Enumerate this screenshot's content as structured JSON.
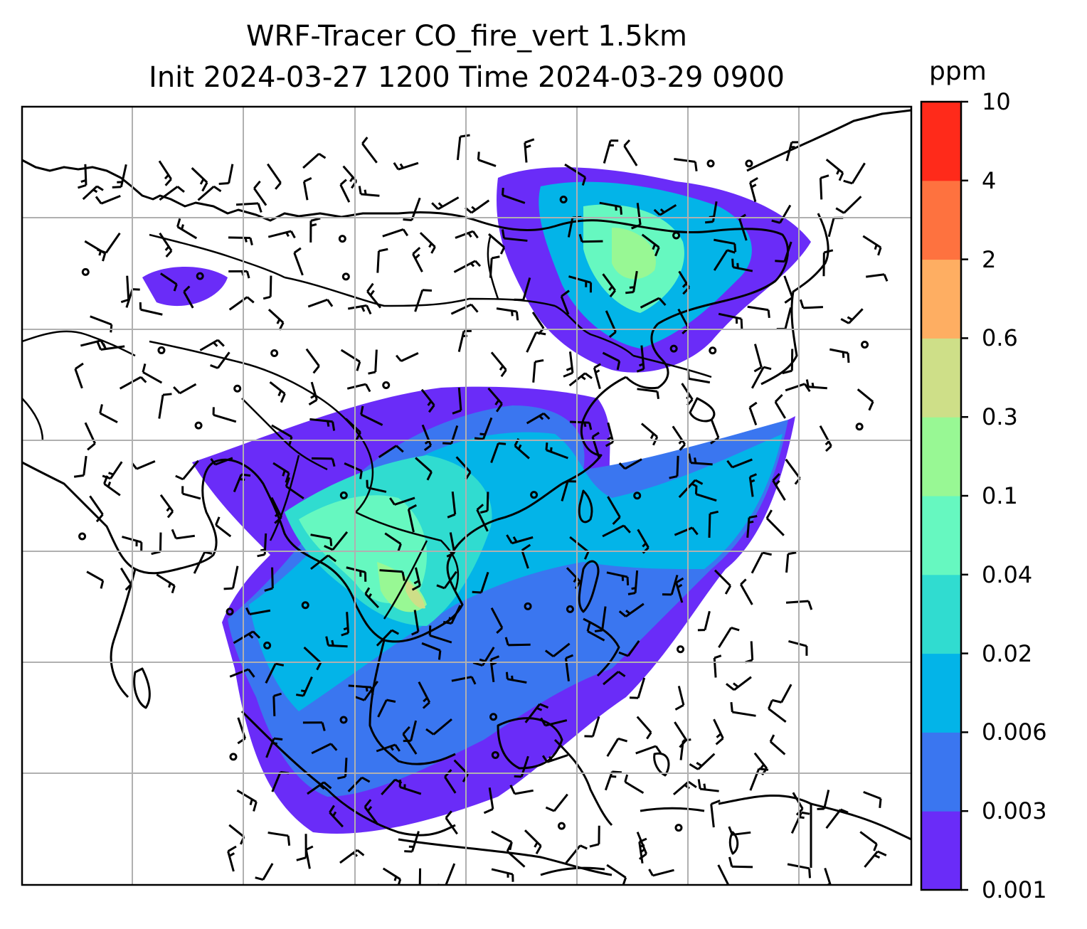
{
  "title": {
    "line1": "WRF-Tracer CO_fire_vert 1.5km",
    "line2": "Init 2024-03-27 1200 Time 2024-03-29 0900"
  },
  "colorbar": {
    "unit": "ppm",
    "levels": [
      "0.001",
      "0.003",
      "0.006",
      "0.02",
      "0.04",
      "0.1",
      "0.3",
      "0.6",
      "2",
      "4",
      "10"
    ],
    "colors": [
      "#6a2cf8",
      "#3a76f0",
      "#03b4e8",
      "#30dcd0",
      "#66f8c0",
      "#98f894",
      "#cedf88",
      "#feae62",
      "#fe723f",
      "#ff2a1a"
    ]
  },
  "map": {
    "gridlines": true,
    "overlays": [
      "coastlines",
      "country-borders",
      "wind-barbs"
    ]
  }
}
